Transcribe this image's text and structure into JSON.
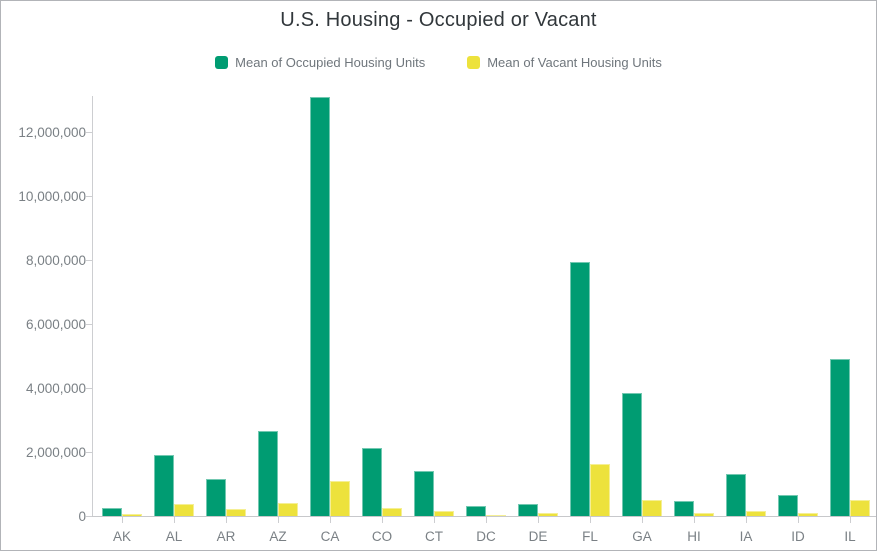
{
  "chart_data": {
    "type": "bar",
    "title": "U.S. Housing - Occupied or Vacant",
    "xlabel": "",
    "ylabel": "",
    "legend_position": "top",
    "grid": false,
    "categories": [
      "AK",
      "AL",
      "AR",
      "AZ",
      "CA",
      "CO",
      "CT",
      "DC",
      "DE",
      "FL",
      "GA",
      "HI",
      "IA",
      "ID",
      "IL"
    ],
    "series": [
      {
        "name": "Mean of Occupied Housing Units",
        "color": "#009C72",
        "values": [
          250000,
          1900000,
          1170000,
          2650000,
          13100000,
          2130000,
          1400000,
          300000,
          380000,
          7950000,
          3850000,
          480000,
          1300000,
          670000,
          4900000
        ]
      },
      {
        "name": "Mean of Vacant Housing Units",
        "color": "#EDE23C",
        "values": [
          60000,
          380000,
          210000,
          400000,
          1100000,
          250000,
          150000,
          40000,
          85000,
          1630000,
          510000,
          95000,
          165000,
          100000,
          510000
        ]
      }
    ],
    "y_ticks": [
      {
        "value": 0,
        "label": "0"
      },
      {
        "value": 2000000,
        "label": "2,000,000"
      },
      {
        "value": 4000000,
        "label": "4,000,000"
      },
      {
        "value": 6000000,
        "label": "6,000,000"
      },
      {
        "value": 8000000,
        "label": "8,000,000"
      },
      {
        "value": 10000000,
        "label": "10,000,000"
      },
      {
        "value": 12000000,
        "label": "12,000,000"
      }
    ],
    "ylim": [
      0,
      13125000
    ]
  },
  "colors": {
    "occupied": "#009C72",
    "vacant": "#EDE23C",
    "axis_line": "#cdced1",
    "tick_label": "#7a8085",
    "title_text": "#31373b",
    "legend_text": "#6f767c",
    "frame_border": "#b2b4b8"
  }
}
